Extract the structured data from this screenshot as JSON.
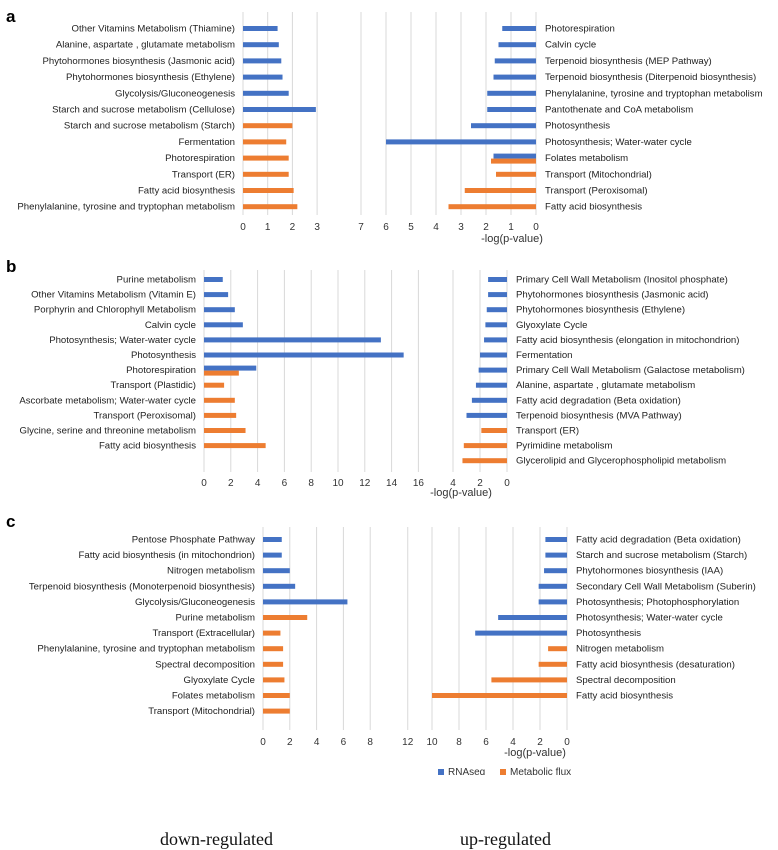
{
  "colors": {
    "rnaseq": "#4472C4",
    "flux": "#ED7D31",
    "grid": "#d9d9d9",
    "text": "#222222"
  },
  "legend": {
    "rnaseq": "RNAseq",
    "flux": "Metabolic flux"
  },
  "footer": {
    "down": "down-regulated",
    "up": "up-regulated"
  },
  "chart_data": [
    {
      "type": "bar",
      "panel": "a",
      "xlabel": "-log(p-value)",
      "left": {
        "direction": "down-regulated",
        "ticks": [
          "0",
          "1",
          "2",
          "3"
        ],
        "xlim": [
          0,
          3
        ],
        "bars": [
          {
            "label": "Other Vitamins Metabolism (Thiamine)",
            "value": 1.4,
            "series": "RNAseq"
          },
          {
            "label": "Alanine, aspartate , glutamate metabolism",
            "value": 1.45,
            "series": "RNAseq"
          },
          {
            "label": "Phytohormones biosynthesis (Jasmonic acid)",
            "value": 1.55,
            "series": "RNAseq"
          },
          {
            "label": "Phytohormones biosynthesis (Ethylene)",
            "value": 1.6,
            "series": "RNAseq"
          },
          {
            "label": "Glycolysis/Gluconeogenesis",
            "value": 1.85,
            "series": "RNAseq"
          },
          {
            "label": "Starch and sucrose metabolism (Cellulose)",
            "value": 2.95,
            "series": "RNAseq"
          },
          {
            "label": "Starch and sucrose metabolism (Starch)",
            "value": 2.0,
            "series": "Metabolic flux"
          },
          {
            "label": "Fermentation",
            "value": 1.75,
            "series": "Metabolic flux"
          },
          {
            "label": "Photorespiration",
            "value": 1.85,
            "series": "Metabolic flux"
          },
          {
            "label": "Transport (ER)",
            "value": 1.85,
            "series": "Metabolic flux"
          },
          {
            "label": "Fatty acid biosynthesis",
            "value": 2.05,
            "series": "Metabolic flux"
          },
          {
            "label": "Phenylalanine, tyrosine and tryptophan metabolism",
            "value": 2.2,
            "series": "Metabolic flux"
          }
        ]
      },
      "right": {
        "direction": "up-regulated",
        "ticks": [
          "7",
          "6",
          "5",
          "4",
          "3",
          "2",
          "1",
          "0"
        ],
        "xlim": [
          0,
          7
        ],
        "bars": [
          {
            "label": "Photorespiration",
            "value": 1.35,
            "series": "RNAseq"
          },
          {
            "label": "Calvin cycle",
            "value": 1.5,
            "series": "RNAseq"
          },
          {
            "label": "Terpenoid biosynthesis (MEP Pathway)",
            "value": 1.65,
            "series": "RNAseq"
          },
          {
            "label": "Terpenoid biosynthesis (Diterpenoid biosynthesis)",
            "value": 1.7,
            "series": "RNAseq"
          },
          {
            "label": "Phenylalanine, tyrosine and tryptophan metabolism",
            "value": 1.95,
            "series": "RNAseq"
          },
          {
            "label": "Pantothenate and CoA metabolism",
            "value": 1.95,
            "series": "RNAseq"
          },
          {
            "label": "Photosynthesis",
            "value": 2.6,
            "series": "RNAseq"
          },
          {
            "label": "Photosynthesis; Water-water cycle",
            "value": 6.0,
            "series": "RNAseq"
          },
          {
            "label": "Folates metabolism",
            "value": 1.7,
            "series": "RNAseq"
          },
          {
            "label": "Folates metabolism",
            "value": 1.8,
            "series": "Metabolic flux"
          },
          {
            "label": "Transport (Mitochondrial)",
            "value": 1.6,
            "series": "Metabolic flux"
          },
          {
            "label": "Transport (Peroxisomal)",
            "value": 2.85,
            "series": "Metabolic flux"
          },
          {
            "label": "Fatty acid biosynthesis",
            "value": 3.5,
            "series": "Metabolic flux"
          }
        ]
      }
    },
    {
      "type": "bar",
      "panel": "b",
      "xlabel": "-log(p-value)",
      "left": {
        "direction": "down-regulated",
        "ticks": [
          "0",
          "2",
          "4",
          "6",
          "8",
          "10",
          "12",
          "14",
          "16"
        ],
        "xlim": [
          0,
          16
        ],
        "bars": [
          {
            "label": "Purine metabolism",
            "value": 1.4,
            "series": "RNAseq"
          },
          {
            "label": "Other Vitamins Metabolism (Vitamin E)",
            "value": 1.8,
            "series": "RNAseq"
          },
          {
            "label": "Porphyrin and Chlorophyll Metabolism",
            "value": 2.3,
            "series": "RNAseq"
          },
          {
            "label": "Calvin cycle",
            "value": 2.9,
            "series": "RNAseq"
          },
          {
            "label": "Photosynthesis; Water-water cycle",
            "value": 13.2,
            "series": "RNAseq"
          },
          {
            "label": "Photosynthesis",
            "value": 14.9,
            "series": "RNAseq"
          },
          {
            "label": "Photorespiration",
            "value": 3.9,
            "series": "RNAseq"
          },
          {
            "label": "Photorespiration",
            "value": 2.6,
            "series": "Metabolic flux"
          },
          {
            "label": "Transport (Plastidic)",
            "value": 1.5,
            "series": "Metabolic flux"
          },
          {
            "label": "Ascorbate metabolism; Water-water cycle",
            "value": 2.3,
            "series": "Metabolic flux"
          },
          {
            "label": "Transport (Peroxisomal)",
            "value": 2.4,
            "series": "Metabolic flux"
          },
          {
            "label": "Glycine, serine and threonine metabolism",
            "value": 3.1,
            "series": "Metabolic flux"
          },
          {
            "label": "Fatty acid biosynthesis",
            "value": 4.6,
            "series": "Metabolic flux"
          }
        ]
      },
      "right": {
        "direction": "up-regulated",
        "ticks": [
          "4",
          "2",
          "0"
        ],
        "xlim": [
          0,
          4
        ],
        "bars": [
          {
            "label": "Primary Cell Wall Metabolism (Inositol phosphate)",
            "value": 1.4,
            "series": "RNAseq"
          },
          {
            "label": "Phytohormones biosynthesis (Jasmonic acid)",
            "value": 1.4,
            "series": "RNAseq"
          },
          {
            "label": "Phytohormones biosynthesis (Ethylene)",
            "value": 1.5,
            "series": "RNAseq"
          },
          {
            "label": "Glyoxylate Cycle",
            "value": 1.6,
            "series": "RNAseq"
          },
          {
            "label": "Fatty acid biosynthesis (elongation in mitochondrion)",
            "value": 1.7,
            "series": "RNAseq"
          },
          {
            "label": "Fermentation",
            "value": 2.0,
            "series": "RNAseq"
          },
          {
            "label": "Primary Cell Wall Metabolism (Galactose metabolism)",
            "value": 2.1,
            "series": "RNAseq"
          },
          {
            "label": "Alanine, aspartate , glutamate metabolism",
            "value": 2.3,
            "series": "RNAseq"
          },
          {
            "label": "Fatty acid degradation (Beta oxidation)",
            "value": 2.6,
            "series": "RNAseq"
          },
          {
            "label": "Terpenoid biosynthesis (MVA Pathway)",
            "value": 3.0,
            "series": "RNAseq"
          },
          {
            "label": "Transport (ER)",
            "value": 1.9,
            "series": "Metabolic flux"
          },
          {
            "label": "Pyrimidine metabolism",
            "value": 3.2,
            "series": "Metabolic flux"
          },
          {
            "label": "Glycerolipid and Glycerophospholipid metabolism",
            "value": 3.3,
            "series": "Metabolic flux"
          }
        ]
      }
    },
    {
      "type": "bar",
      "panel": "c",
      "xlabel": "-log(p-value)",
      "left": {
        "direction": "down-regulated",
        "ticks": [
          "0",
          "2",
          "4",
          "6",
          "8",
          "12"
        ],
        "xlim": [
          0,
          12
        ],
        "bars": [
          {
            "label": "Pentose Phosphate Pathway",
            "value": 1.4,
            "series": "RNAseq"
          },
          {
            "label": "Fatty acid biosynthesis (in mitochondrion)",
            "value": 1.4,
            "series": "RNAseq"
          },
          {
            "label": "Nitrogen metabolism",
            "value": 2.0,
            "series": "RNAseq"
          },
          {
            "label": "Terpenoid biosynthesis (Monoterpenoid biosynthesis)",
            "value": 2.4,
            "series": "RNAseq"
          },
          {
            "label": "Glycolysis/Gluconeogenesis",
            "value": 6.3,
            "series": "RNAseq"
          },
          {
            "label": "Purine metabolism",
            "value": 3.3,
            "series": "Metabolic flux"
          },
          {
            "label": "Transport (Extracellular)",
            "value": 1.3,
            "series": "Metabolic flux"
          },
          {
            "label": "Phenylalanine, tyrosine and tryptophan metabolism",
            "value": 1.5,
            "series": "Metabolic flux"
          },
          {
            "label": "Spectral decomposition",
            "value": 1.5,
            "series": "Metabolic flux"
          },
          {
            "label": "Glyoxylate Cycle",
            "value": 1.6,
            "series": "Metabolic flux"
          },
          {
            "label": "Folates metabolism",
            "value": 2.0,
            "series": "Metabolic flux"
          },
          {
            "label": "Transport (Mitochondrial)",
            "value": 2.0,
            "series": "Metabolic flux"
          }
        ]
      },
      "right": {
        "direction": "up-regulated",
        "ticks": [
          "10",
          "8",
          "6",
          "4",
          "2",
          "0"
        ],
        "xlim": [
          0,
          10
        ],
        "bars": [
          {
            "label": "Fatty acid degradation (Beta oxidation)",
            "value": 1.6,
            "series": "RNAseq"
          },
          {
            "label": "Starch and sucrose metabolism (Starch)",
            "value": 1.6,
            "series": "RNAseq"
          },
          {
            "label": "Phytohormones biosynthesis (IAA)",
            "value": 1.7,
            "series": "RNAseq"
          },
          {
            "label": "Secondary Cell Wall Metabolism (Suberin)",
            "value": 2.1,
            "series": "RNAseq"
          },
          {
            "label": "Photosynthesis; Photophosphorylation",
            "value": 2.1,
            "series": "RNAseq"
          },
          {
            "label": "Photosynthesis; Water-water cycle",
            "value": 5.1,
            "series": "RNAseq"
          },
          {
            "label": "Photosynthesis",
            "value": 6.8,
            "series": "RNAseq"
          },
          {
            "label": "Nitrogen metabolism",
            "value": 1.4,
            "series": "Metabolic flux"
          },
          {
            "label": "Fatty acid biosynthesis (desaturation)",
            "value": 2.1,
            "series": "Metabolic flux"
          },
          {
            "label": "Spectral decomposition",
            "value": 5.6,
            "series": "Metabolic flux"
          },
          {
            "label": "Fatty acid biosynthesis",
            "value": 10.0,
            "series": "Metabolic flux"
          }
        ]
      }
    }
  ]
}
